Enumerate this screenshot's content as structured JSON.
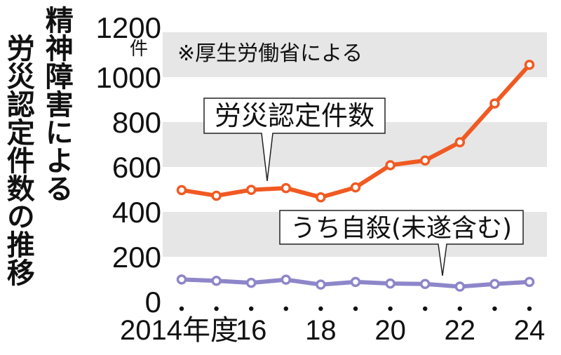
{
  "title": {
    "line1": "精神障害による",
    "line2": "労災認定件数の推移"
  },
  "unit": "件",
  "source": "※厚生労働省による",
  "colors": {
    "series1": "#f05a22",
    "series2": "#8d86c9",
    "band": "#e6e6e6"
  },
  "chart_data": {
    "type": "line",
    "x": [
      2014,
      2015,
      2016,
      2017,
      2018,
      2019,
      2020,
      2021,
      2022,
      2023,
      2024
    ],
    "xtick_labels": [
      {
        "x": 2014,
        "label": "2014年度"
      },
      {
        "x": 2016,
        "label": "16"
      },
      {
        "x": 2018,
        "label": "18"
      },
      {
        "x": 2020,
        "label": "20"
      },
      {
        "x": 2022,
        "label": "22"
      },
      {
        "x": 2024,
        "label": "24"
      }
    ],
    "yticks": [
      0,
      200,
      400,
      600,
      800,
      1000,
      1200
    ],
    "ylim": [
      0,
      1200
    ],
    "series": [
      {
        "name": "労災認定件数",
        "values": [
          497,
          472,
          498,
          506,
          465,
          509,
          608,
          629,
          710,
          883,
          1055
        ]
      },
      {
        "name": "うち自殺(未遂含む)",
        "values": [
          99,
          93,
          84,
          98,
          76,
          88,
          81,
          79,
          67,
          79,
          88
        ]
      }
    ]
  }
}
